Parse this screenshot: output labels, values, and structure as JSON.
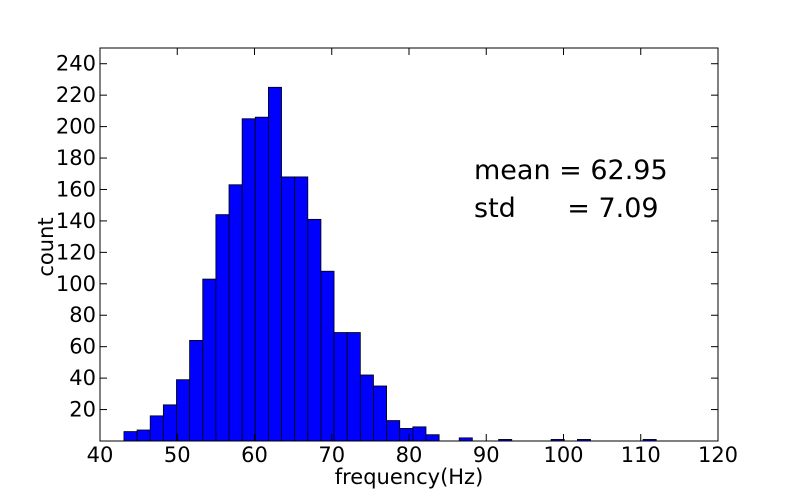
{
  "chart_data": {
    "type": "bar",
    "title": "",
    "xlabel": "frequency(Hz)",
    "ylabel": "count",
    "xlim": [
      40,
      120
    ],
    "ylim": [
      0,
      250
    ],
    "bin_width": 1.7,
    "bins": [
      {
        "x": 43.1,
        "count": 6
      },
      {
        "x": 44.8,
        "count": 7
      },
      {
        "x": 46.5,
        "count": 16
      },
      {
        "x": 48.2,
        "count": 23
      },
      {
        "x": 49.9,
        "count": 39
      },
      {
        "x": 51.6,
        "count": 64
      },
      {
        "x": 53.3,
        "count": 103
      },
      {
        "x": 55.0,
        "count": 144
      },
      {
        "x": 56.7,
        "count": 163
      },
      {
        "x": 58.4,
        "count": 205
      },
      {
        "x": 60.1,
        "count": 206
      },
      {
        "x": 61.8,
        "count": 225
      },
      {
        "x": 63.5,
        "count": 168
      },
      {
        "x": 65.2,
        "count": 168
      },
      {
        "x": 66.9,
        "count": 141
      },
      {
        "x": 68.6,
        "count": 108
      },
      {
        "x": 70.3,
        "count": 69
      },
      {
        "x": 72.0,
        "count": 69
      },
      {
        "x": 73.7,
        "count": 42
      },
      {
        "x": 75.4,
        "count": 35
      },
      {
        "x": 77.1,
        "count": 13
      },
      {
        "x": 78.8,
        "count": 8
      },
      {
        "x": 80.5,
        "count": 9
      },
      {
        "x": 82.2,
        "count": 4
      },
      {
        "x": 86.5,
        "count": 2
      },
      {
        "x": 91.6,
        "count": 1
      },
      {
        "x": 98.4,
        "count": 1
      },
      {
        "x": 101.8,
        "count": 1
      },
      {
        "x": 110.3,
        "count": 1
      }
    ],
    "x_ticks": [
      "40",
      "50",
      "60",
      "70",
      "80",
      "90",
      "100",
      "110",
      "120"
    ],
    "y_ticks": [
      "20",
      "40",
      "60",
      "80",
      "100",
      "120",
      "140",
      "160",
      "180",
      "200",
      "220",
      "240"
    ],
    "bar_color": "#0000ff",
    "grid": false,
    "annotations": [
      "mean = 62.95",
      "std      = 7.09"
    ]
  }
}
